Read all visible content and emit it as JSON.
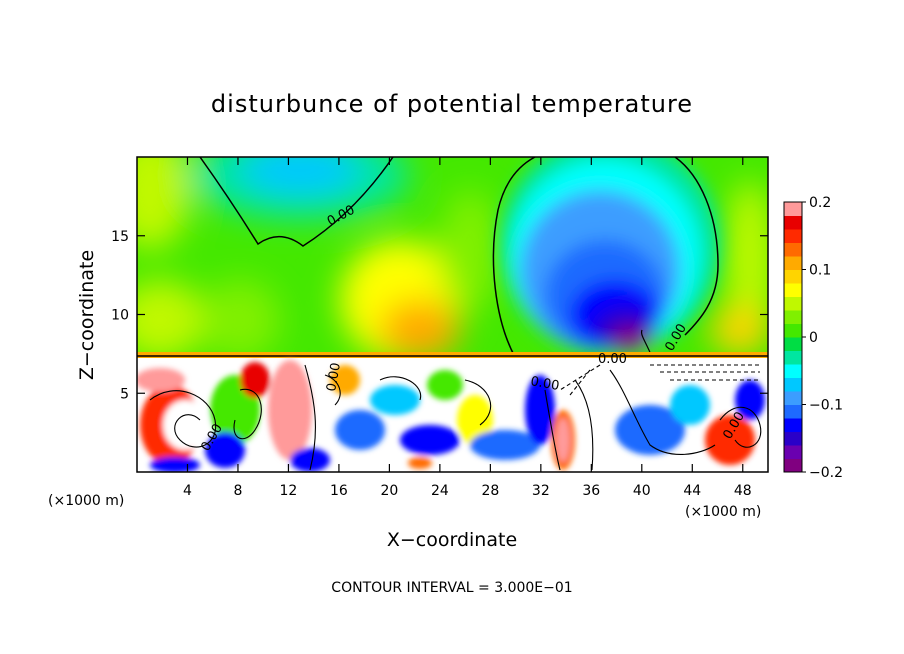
{
  "chart_data": {
    "type": "heatmap",
    "title": "disturbunce of potential temperature",
    "xlabel": "X−coordinate",
    "ylabel": "Z−coordinate",
    "x_unit_left": "(×1000 m)",
    "x_unit_right": "(×1000 m)",
    "footer": "CONTOUR INTERVAL = 3.000E−01",
    "xlim": [
      0,
      50
    ],
    "ylim": [
      0,
      20
    ],
    "xticks": [
      4,
      8,
      12,
      16,
      20,
      24,
      28,
      32,
      36,
      40,
      44,
      48
    ],
    "xtick_labels": [
      "4",
      "8",
      "12",
      "16",
      "20",
      "24",
      "28",
      "32",
      "36",
      "40",
      "44",
      "48"
    ],
    "yticks": [
      5,
      10,
      15
    ],
    "ytick_labels": [
      "5",
      "10",
      "15"
    ],
    "colorbar": {
      "range": [
        -0.2,
        0.2
      ],
      "ticks": [
        0.2,
        0.1,
        0,
        -0.1,
        -0.2
      ],
      "tick_labels": [
        "0.2",
        "0.1",
        "0",
        "−0.1",
        "−0.2"
      ],
      "colors": [
        "#800080",
        "#6a00b0",
        "#2a00c8",
        "#0000ff",
        "#1e6aff",
        "#3c9dff",
        "#00c8ff",
        "#00ffff",
        "#00e6a0",
        "#00dd44",
        "#44e800",
        "#80f000",
        "#c0f800",
        "#ffff00",
        "#ffd400",
        "#ffaa00",
        "#ff6a00",
        "#ff2a00",
        "#e80000",
        "#ff9a9a"
      ]
    },
    "contour_labels": [
      "0.00",
      "0.00",
      "0.00",
      "0.00",
      "0.00",
      "0.00",
      "0.00"
    ],
    "grid": false
  }
}
